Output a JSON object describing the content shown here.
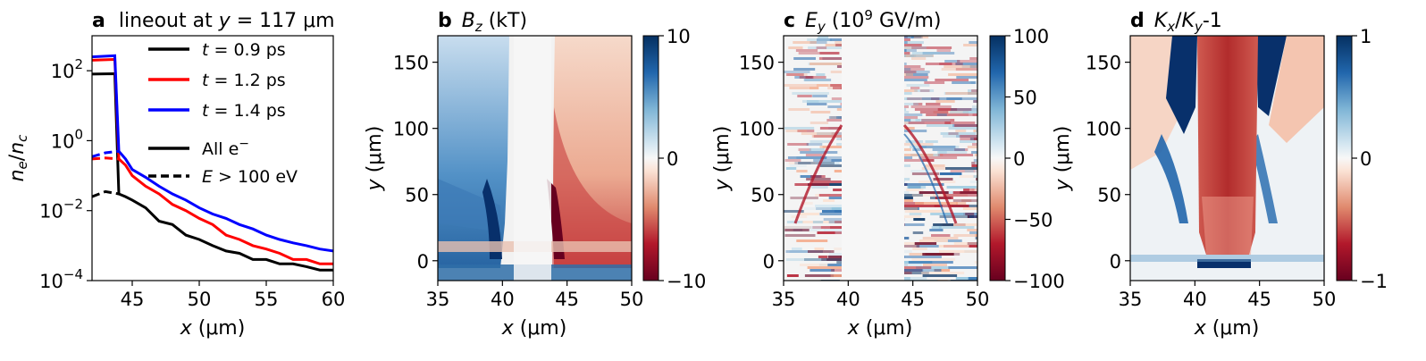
{
  "panels": [
    {
      "id": "a",
      "letter": "a",
      "title": "lineout at ",
      "title_math": "y",
      "title_rest": " = 117 μm",
      "xlabel_var": "x",
      "xlabel_unit": " (μm)",
      "ylabel_var": "n",
      "ylabel_sub": "e",
      "ylabel_den": "n",
      "ylabel_den_sub": "c",
      "chart_data": {
        "type": "line",
        "xscale": "linear",
        "yscale": "log",
        "xlim": [
          42,
          60
        ],
        "ylim": [
          0.0001,
          1000
        ],
        "xticks": [
          45,
          50,
          55,
          60
        ],
        "yticks": [
          {
            "value": 0.0001,
            "base": "10",
            "exp": "−4"
          },
          {
            "value": 0.01,
            "base": "10",
            "exp": "−2"
          },
          {
            "value": 1,
            "base": "10",
            "exp": "0"
          },
          {
            "value": 100,
            "base": "10",
            "exp": "2"
          }
        ],
        "legend": [
          {
            "label_var": "t",
            "label_rest": " = 0.9 ps",
            "color": "#000000",
            "style": "solid"
          },
          {
            "label_var": "t",
            "label_rest": " = 1.2 ps",
            "color": "#ff0000",
            "style": "solid"
          },
          {
            "label_var": "t",
            "label_rest": " = 1.4 ps",
            "color": "#0000ff",
            "style": "solid"
          },
          {
            "label_text": "All e",
            "label_sup": "−",
            "color": "#000000",
            "style": "solid"
          },
          {
            "label_var": "E",
            "label_rest": " > 100 eV",
            "color": "#000000",
            "style": "dashed"
          }
        ],
        "series": [
          {
            "time": "t = 0.9 ps",
            "filter": "All e−",
            "color": "#000000",
            "style": "solid",
            "points": [
              [
                42,
                80
              ],
              [
                43.7,
                82
              ],
              [
                44.0,
                0.03
              ],
              [
                44.5,
                0.025
              ],
              [
                45,
                0.02
              ],
              [
                46,
                0.012
              ],
              [
                47,
                0.005
              ],
              [
                48,
                0.004
              ],
              [
                49,
                0.002
              ],
              [
                50,
                0.0015
              ],
              [
                51,
                0.001
              ],
              [
                52,
                0.0007
              ],
              [
                53,
                0.0006
              ],
              [
                54,
                0.0004
              ],
              [
                55,
                0.0004
              ],
              [
                56,
                0.0003
              ],
              [
                57,
                0.0003
              ],
              [
                58,
                0.00025
              ],
              [
                59,
                0.0002
              ],
              [
                60,
                0.0002
              ]
            ]
          },
          {
            "time": "t = 1.2 ps",
            "filter": "All e−",
            "color": "#ff0000",
            "style": "solid",
            "points": [
              [
                42,
                200
              ],
              [
                43.7,
                210
              ],
              [
                44.0,
                0.3
              ],
              [
                44.5,
                0.2
              ],
              [
                45,
                0.1
              ],
              [
                46,
                0.05
              ],
              [
                47,
                0.03
              ],
              [
                48,
                0.015
              ],
              [
                49,
                0.01
              ],
              [
                50,
                0.006
              ],
              [
                51,
                0.004
              ],
              [
                52,
                0.002
              ],
              [
                53,
                0.0015
              ],
              [
                54,
                0.001
              ],
              [
                55,
                0.0008
              ],
              [
                56,
                0.0006
              ],
              [
                57,
                0.0004
              ],
              [
                58,
                0.0004
              ],
              [
                59,
                0.0003
              ],
              [
                60,
                0.0003
              ]
            ]
          },
          {
            "time": "t = 1.4 ps",
            "filter": "All e−",
            "color": "#0000ff",
            "style": "solid",
            "points": [
              [
                42,
                250
              ],
              [
                43.7,
                270
              ],
              [
                44.0,
                0.5
              ],
              [
                44.5,
                0.3
              ],
              [
                45,
                0.15
              ],
              [
                46,
                0.09
              ],
              [
                47,
                0.05
              ],
              [
                48,
                0.03
              ],
              [
                49,
                0.02
              ],
              [
                50,
                0.012
              ],
              [
                51,
                0.008
              ],
              [
                52,
                0.006
              ],
              [
                53,
                0.004
              ],
              [
                54,
                0.003
              ],
              [
                55,
                0.002
              ],
              [
                56,
                0.0015
              ],
              [
                57,
                0.0012
              ],
              [
                58,
                0.001
              ],
              [
                59,
                0.0008
              ],
              [
                60,
                0.0007
              ]
            ]
          },
          {
            "time": "t = 0.9 ps",
            "filter": "E > 100 eV",
            "color": "#000000",
            "style": "dashed",
            "points": [
              [
                42,
                0.025
              ],
              [
                43,
                0.035
              ],
              [
                44,
                0.03
              ]
            ]
          },
          {
            "time": "t = 1.2 ps",
            "filter": "E > 100 eV",
            "color": "#ff0000",
            "style": "dashed",
            "points": [
              [
                42,
                0.3
              ],
              [
                43,
                0.32
              ],
              [
                44,
                0.3
              ]
            ]
          },
          {
            "time": "t = 1.4 ps",
            "filter": "E > 100 eV",
            "color": "#0000ff",
            "style": "dashed",
            "points": [
              [
                42,
                0.35
              ],
              [
                43,
                0.45
              ],
              [
                44,
                0.5
              ]
            ]
          }
        ]
      }
    },
    {
      "id": "b",
      "letter": "b",
      "title_math": "B",
      "title_sub": "z",
      "title_rest": " (kT)",
      "xlabel_var": "x",
      "xlabel_unit": " (μm)",
      "ylabel_var": "y",
      "ylabel_unit": " (μm)",
      "chart_data": {
        "type": "heatmap",
        "xlim": [
          35,
          50
        ],
        "ylim": [
          -15,
          170
        ],
        "xticks": [
          35,
          40,
          45,
          50
        ],
        "yticks": [
          0,
          50,
          100,
          150
        ],
        "colormap": "RdBu",
        "clim": [
          -10,
          10
        ],
        "cbar_ticks": [
          "−10",
          "0",
          "10"
        ],
        "cbar_tick_values": [
          -10,
          0,
          10
        ]
      }
    },
    {
      "id": "c",
      "letter": "c",
      "title_math": "E",
      "title_sub": "y",
      "title_rest": " (10",
      "title_sup": "9",
      "title_tail": " GV/m)",
      "xlabel_var": "x",
      "xlabel_unit": " (μm)",
      "ylabel_var": "y",
      "ylabel_unit": " (μm)",
      "chart_data": {
        "type": "heatmap",
        "xlim": [
          35,
          50
        ],
        "ylim": [
          -15,
          170
        ],
        "xticks": [
          35,
          40,
          45,
          50
        ],
        "yticks": [
          0,
          50,
          100,
          150
        ],
        "colormap": "RdBu",
        "clim": [
          -100,
          100
        ],
        "cbar_ticks": [
          "−100",
          "−50",
          "0",
          "50",
          "100"
        ],
        "cbar_tick_values": [
          -100,
          -50,
          0,
          50,
          100
        ]
      }
    },
    {
      "id": "d",
      "letter": "d",
      "title_math": "K",
      "title_sub": "x",
      "title_rest": "/",
      "title_math2": "K",
      "title_sub2": "y",
      "title_tail": "-1",
      "xlabel_var": "x",
      "xlabel_unit": " (μm)",
      "ylabel_var": "y",
      "ylabel_unit": " (μm)",
      "chart_data": {
        "type": "heatmap",
        "xlim": [
          35,
          50
        ],
        "ylim": [
          -15,
          170
        ],
        "xticks": [
          35,
          40,
          45,
          50
        ],
        "yticks": [
          0,
          50,
          100,
          150
        ],
        "colormap": "RdBu",
        "clim": [
          -1,
          1
        ],
        "cbar_ticks": [
          "−1",
          "0",
          "1"
        ],
        "cbar_tick_values": [
          -1,
          0,
          1
        ]
      }
    }
  ]
}
